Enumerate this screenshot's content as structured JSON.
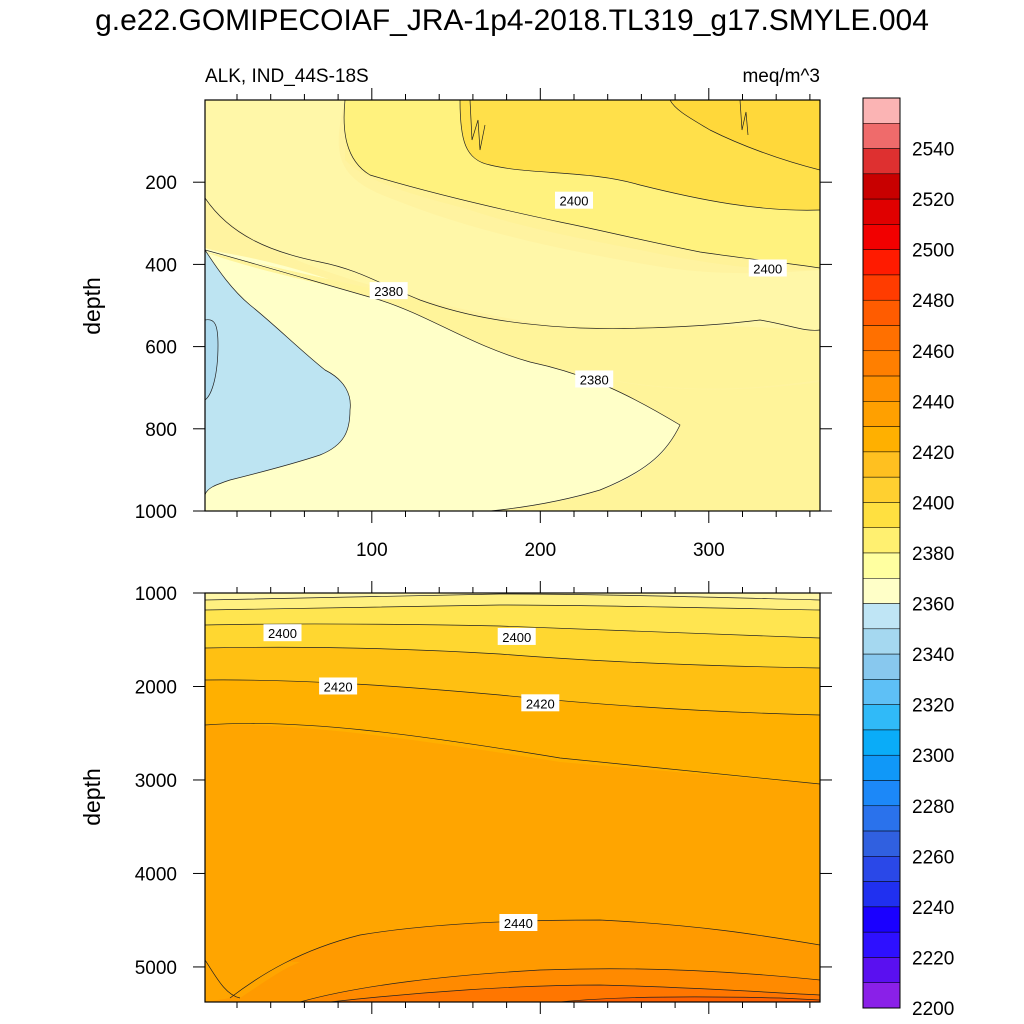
{
  "title": "g.e22.GOMIPECOIAF_JRA-1p4-2018.TL319_g17.SMYLE.004",
  "chart_data": [
    {
      "type": "heatmap",
      "panel": "upper",
      "left_label": "ALK, IND_44S-18S",
      "right_label": "meq/m^3",
      "xlabel": "",
      "ylabel": "depth",
      "xlim": [
        1,
        366
      ],
      "ylim": [
        1000,
        0
      ],
      "x_ticks": [
        100,
        200,
        300
      ],
      "y_ticks": [
        200,
        400,
        600,
        800,
        1000
      ],
      "contour_labels": [
        {
          "value": "2400",
          "x": 220,
          "y": 245
        },
        {
          "value": "2400",
          "x": 335,
          "y": 410
        },
        {
          "value": "2380",
          "x": 110,
          "y": 465
        },
        {
          "value": "2380",
          "x": 232,
          "y": 680
        }
      ]
    },
    {
      "type": "heatmap",
      "panel": "lower",
      "xlabel": "",
      "ylabel": "depth",
      "xlim": [
        1,
        366
      ],
      "ylim": [
        5375,
        1000
      ],
      "x_ticks": [
        100,
        200,
        300
      ],
      "y_ticks": [
        1000,
        2000,
        3000,
        4000,
        5000
      ],
      "contour_labels": [
        {
          "value": "2400",
          "x": 47,
          "y": 1430
        },
        {
          "value": "2400",
          "x": 186,
          "y": 1470
        },
        {
          "value": "2420",
          "x": 80,
          "y": 2000
        },
        {
          "value": "2420",
          "x": 200,
          "y": 2180
        },
        {
          "value": "2440",
          "x": 187,
          "y": 4530
        }
      ]
    }
  ],
  "colorbar": {
    "labels": [
      "2540",
      "2520",
      "2500",
      "2480",
      "2460",
      "2440",
      "2420",
      "2400",
      "2380",
      "2360",
      "2340",
      "2320",
      "2300",
      "2280",
      "2260",
      "2240",
      "2220",
      "2200"
    ],
    "colors": [
      "#fbb4b4",
      "#ef6b6b",
      "#de3030",
      "#c80000",
      "#e00000",
      "#f20000",
      "#ff1b00",
      "#ff3c00",
      "#ff5c00",
      "#ff7000",
      "#ff7f00",
      "#ff9000",
      "#ffa000",
      "#ffb000",
      "#ffc020",
      "#ffd030",
      "#ffe040",
      "#fff070",
      "#ffffa0",
      "#ffffc8",
      "#bfe5f5",
      "#a5d8f0",
      "#88c8ee",
      "#5ec0f6",
      "#30baf8",
      "#0aacf8",
      "#1098f8",
      "#1c88f8",
      "#2a72ec",
      "#3060e0",
      "#2a48e8",
      "#2030f0",
      "#1a00ff",
      "#2e10ff",
      "#5a10f0",
      "#8a20e8"
    ]
  }
}
